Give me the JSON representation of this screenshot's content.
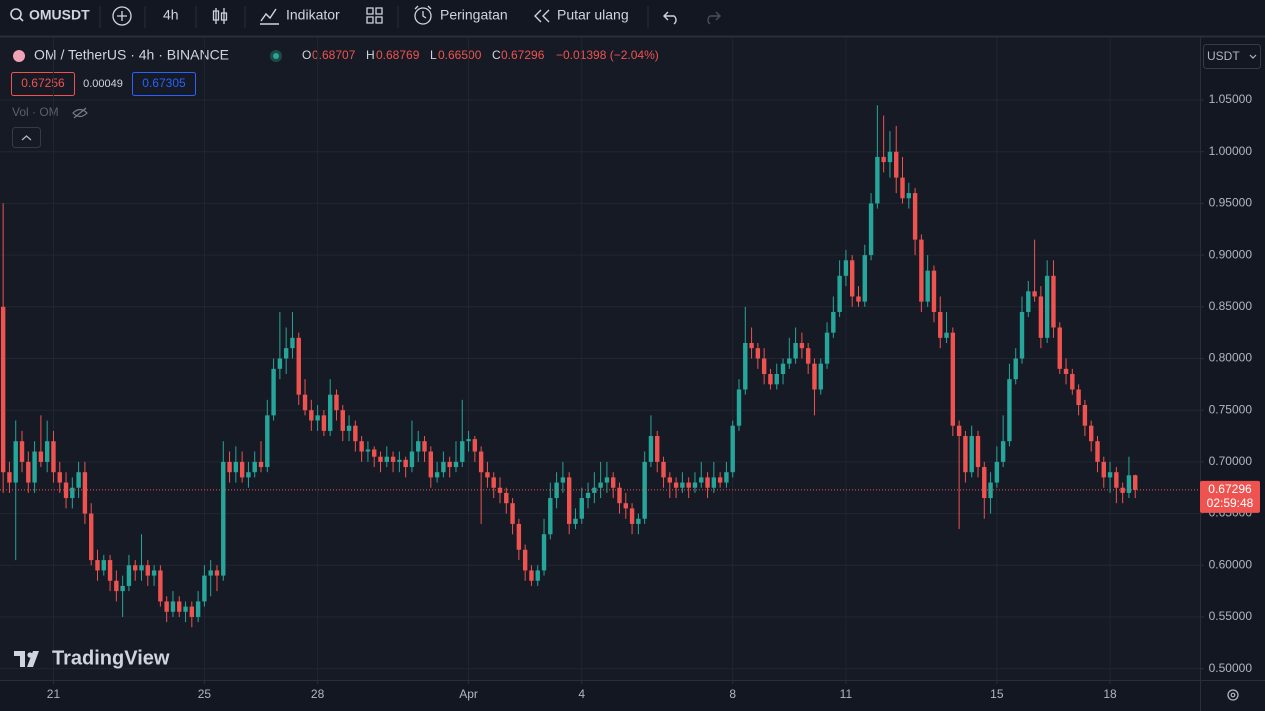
{
  "toolbar": {
    "symbol": "OMUSDT",
    "interval": "4h",
    "indicators": "Indikator",
    "alerts": "Peringatan",
    "replay": "Putar ulang"
  },
  "legend": {
    "title": "OM / TetherUS · 4h · BINANCE",
    "ohlc": [
      {
        "label": "O",
        "value": "0.68707"
      },
      {
        "label": "H",
        "value": "0.68769"
      },
      {
        "label": "L",
        "value": "0.66500"
      },
      {
        "label": "C",
        "value": "0.67296"
      }
    ],
    "change": "−0.01398 (−2.04%)",
    "bid": "0.67256",
    "spread": "0.00049",
    "ask": "0.67305",
    "volume": "Vol · OM"
  },
  "chart_data": {
    "type": "candlestick",
    "currency": "USDT",
    "up_color": "#26a69a",
    "down_color": "#ef5350",
    "grid": true,
    "last_price_label": "0.67296",
    "countdown": "02:59:48",
    "watermark": "TradingView",
    "ylim": [
      0.489,
      1.111
    ],
    "yticks": [
      {
        "value": 0.5,
        "label": "0.50000"
      },
      {
        "value": 0.55,
        "label": "0.55000"
      },
      {
        "value": 0.6,
        "label": "0.60000"
      },
      {
        "value": 0.65,
        "label": "0.65000"
      },
      {
        "value": 0.7,
        "label": "0.70000"
      },
      {
        "value": 0.75,
        "label": "0.75000"
      },
      {
        "value": 0.8,
        "label": "0.80000"
      },
      {
        "value": 0.85,
        "label": "0.85000"
      },
      {
        "value": 0.9,
        "label": "0.90000"
      },
      {
        "value": 0.95,
        "label": "0.95000"
      },
      {
        "value": 1,
        "label": "1.00000"
      },
      {
        "value": 1.05,
        "label": "1.05000"
      }
    ],
    "xlim": [
      -0.5,
      190.3
    ],
    "xticks": [
      {
        "value": 8,
        "label": "21"
      },
      {
        "value": 32,
        "label": "25"
      },
      {
        "value": 50,
        "label": "28"
      },
      {
        "value": 74,
        "label": "Apr"
      },
      {
        "value": 92,
        "label": "4"
      },
      {
        "value": 116,
        "label": "8"
      },
      {
        "value": 134,
        "label": "11"
      },
      {
        "value": 158,
        "label": "15"
      },
      {
        "value": 176,
        "label": "18"
      }
    ],
    "candles": [
      [
        0.85,
        0.95,
        0.67,
        0.69
      ],
      [
        0.69,
        0.7,
        0.67,
        0.68
      ],
      [
        0.68,
        0.74,
        0.605,
        0.72
      ],
      [
        0.72,
        0.73,
        0.69,
        0.7
      ],
      [
        0.7,
        0.71,
        0.67,
        0.68
      ],
      [
        0.68,
        0.72,
        0.67,
        0.71
      ],
      [
        0.71,
        0.745,
        0.695,
        0.7
      ],
      [
        0.7,
        0.74,
        0.69,
        0.72
      ],
      [
        0.72,
        0.73,
        0.68,
        0.69
      ],
      [
        0.69,
        0.7,
        0.67,
        0.68
      ],
      [
        0.68,
        0.69,
        0.655,
        0.665
      ],
      [
        0.665,
        0.685,
        0.655,
        0.675
      ],
      [
        0.675,
        0.7,
        0.665,
        0.69
      ],
      [
        0.69,
        0.7,
        0.64,
        0.65
      ],
      [
        0.65,
        0.66,
        0.6,
        0.605
      ],
      [
        0.605,
        0.615,
        0.585,
        0.595
      ],
      [
        0.595,
        0.61,
        0.59,
        0.605
      ],
      [
        0.605,
        0.61,
        0.575,
        0.585
      ],
      [
        0.585,
        0.595,
        0.565,
        0.575
      ],
      [
        0.575,
        0.59,
        0.55,
        0.58
      ],
      [
        0.58,
        0.61,
        0.575,
        0.6
      ],
      [
        0.6,
        0.605,
        0.585,
        0.595
      ],
      [
        0.595,
        0.63,
        0.585,
        0.6
      ],
      [
        0.6,
        0.605,
        0.58,
        0.59
      ],
      [
        0.59,
        0.6,
        0.58,
        0.595
      ],
      [
        0.595,
        0.6,
        0.56,
        0.565
      ],
      [
        0.565,
        0.57,
        0.545,
        0.555
      ],
      [
        0.555,
        0.575,
        0.55,
        0.565
      ],
      [
        0.565,
        0.57,
        0.55,
        0.555
      ],
      [
        0.555,
        0.565,
        0.545,
        0.56
      ],
      [
        0.56,
        0.565,
        0.54,
        0.55
      ],
      [
        0.55,
        0.575,
        0.545,
        0.565
      ],
      [
        0.565,
        0.6,
        0.56,
        0.59
      ],
      [
        0.59,
        0.605,
        0.57,
        0.595
      ],
      [
        0.595,
        0.6,
        0.575,
        0.59
      ],
      [
        0.59,
        0.72,
        0.585,
        0.7
      ],
      [
        0.7,
        0.71,
        0.68,
        0.69
      ],
      [
        0.69,
        0.715,
        0.68,
        0.7
      ],
      [
        0.7,
        0.71,
        0.68,
        0.685
      ],
      [
        0.685,
        0.7,
        0.675,
        0.69
      ],
      [
        0.69,
        0.71,
        0.685,
        0.7
      ],
      [
        0.7,
        0.72,
        0.69,
        0.695
      ],
      [
        0.695,
        0.76,
        0.69,
        0.745
      ],
      [
        0.745,
        0.8,
        0.74,
        0.79
      ],
      [
        0.79,
        0.845,
        0.78,
        0.8
      ],
      [
        0.8,
        0.83,
        0.785,
        0.81
      ],
      [
        0.81,
        0.845,
        0.8,
        0.82
      ],
      [
        0.82,
        0.825,
        0.755,
        0.765
      ],
      [
        0.765,
        0.78,
        0.745,
        0.75
      ],
      [
        0.75,
        0.76,
        0.73,
        0.74
      ],
      [
        0.74,
        0.755,
        0.73,
        0.745
      ],
      [
        0.745,
        0.75,
        0.725,
        0.73
      ],
      [
        0.73,
        0.78,
        0.725,
        0.765
      ],
      [
        0.765,
        0.77,
        0.74,
        0.75
      ],
      [
        0.75,
        0.755,
        0.72,
        0.73
      ],
      [
        0.73,
        0.745,
        0.72,
        0.735
      ],
      [
        0.735,
        0.74,
        0.71,
        0.72
      ],
      [
        0.72,
        0.725,
        0.7,
        0.71
      ],
      [
        0.71,
        0.72,
        0.7,
        0.712
      ],
      [
        0.712,
        0.715,
        0.695,
        0.705
      ],
      [
        0.705,
        0.71,
        0.69,
        0.7
      ],
      [
        0.7,
        0.715,
        0.695,
        0.705
      ],
      [
        0.705,
        0.71,
        0.69,
        0.7
      ],
      [
        0.7,
        0.71,
        0.69,
        0.702
      ],
      [
        0.702,
        0.705,
        0.685,
        0.695
      ],
      [
        0.695,
        0.74,
        0.69,
        0.71
      ],
      [
        0.71,
        0.73,
        0.7,
        0.72
      ],
      [
        0.72,
        0.725,
        0.7,
        0.71
      ],
      [
        0.71,
        0.715,
        0.675,
        0.685
      ],
      [
        0.685,
        0.7,
        0.68,
        0.69
      ],
      [
        0.69,
        0.71,
        0.685,
        0.7
      ],
      [
        0.7,
        0.705,
        0.685,
        0.695
      ],
      [
        0.695,
        0.72,
        0.69,
        0.7
      ],
      [
        0.7,
        0.76,
        0.695,
        0.72
      ],
      [
        0.72,
        0.73,
        0.71,
        0.722
      ],
      [
        0.722,
        0.725,
        0.7,
        0.71
      ],
      [
        0.71,
        0.715,
        0.64,
        0.69
      ],
      [
        0.69,
        0.7,
        0.675,
        0.685
      ],
      [
        0.685,
        0.69,
        0.665,
        0.675
      ],
      [
        0.675,
        0.685,
        0.66,
        0.67
      ],
      [
        0.67,
        0.675,
        0.65,
        0.66
      ],
      [
        0.66,
        0.665,
        0.63,
        0.64
      ],
      [
        0.64,
        0.645,
        0.605,
        0.615
      ],
      [
        0.615,
        0.62,
        0.585,
        0.595
      ],
      [
        0.595,
        0.6,
        0.58,
        0.585
      ],
      [
        0.585,
        0.6,
        0.58,
        0.595
      ],
      [
        0.595,
        0.645,
        0.59,
        0.63
      ],
      [
        0.63,
        0.68,
        0.625,
        0.665
      ],
      [
        0.665,
        0.69,
        0.655,
        0.68
      ],
      [
        0.68,
        0.7,
        0.67,
        0.685
      ],
      [
        0.685,
        0.69,
        0.63,
        0.64
      ],
      [
        0.64,
        0.655,
        0.635,
        0.645
      ],
      [
        0.645,
        0.675,
        0.64,
        0.665
      ],
      [
        0.665,
        0.68,
        0.655,
        0.67
      ],
      [
        0.67,
        0.69,
        0.66,
        0.675
      ],
      [
        0.675,
        0.7,
        0.665,
        0.68
      ],
      [
        0.68,
        0.7,
        0.67,
        0.685
      ],
      [
        0.685,
        0.69,
        0.665,
        0.675
      ],
      [
        0.675,
        0.68,
        0.65,
        0.66
      ],
      [
        0.66,
        0.67,
        0.645,
        0.655
      ],
      [
        0.655,
        0.66,
        0.63,
        0.64
      ],
      [
        0.64,
        0.65,
        0.63,
        0.645
      ],
      [
        0.645,
        0.71,
        0.64,
        0.7
      ],
      [
        0.7,
        0.745,
        0.695,
        0.725
      ],
      [
        0.725,
        0.73,
        0.69,
        0.7
      ],
      [
        0.7,
        0.705,
        0.675,
        0.685
      ],
      [
        0.685,
        0.69,
        0.665,
        0.68
      ],
      [
        0.68,
        0.685,
        0.665,
        0.675
      ],
      [
        0.675,
        0.69,
        0.67,
        0.68
      ],
      [
        0.68,
        0.685,
        0.665,
        0.675
      ],
      [
        0.675,
        0.69,
        0.67,
        0.68
      ],
      [
        0.68,
        0.7,
        0.675,
        0.685
      ],
      [
        0.685,
        0.69,
        0.665,
        0.675
      ],
      [
        0.675,
        0.7,
        0.67,
        0.685
      ],
      [
        0.685,
        0.69,
        0.675,
        0.68
      ],
      [
        0.68,
        0.7,
        0.675,
        0.69
      ],
      [
        0.69,
        0.74,
        0.685,
        0.735
      ],
      [
        0.735,
        0.78,
        0.73,
        0.77
      ],
      [
        0.77,
        0.85,
        0.765,
        0.815
      ],
      [
        0.815,
        0.83,
        0.8,
        0.81
      ],
      [
        0.81,
        0.815,
        0.79,
        0.8
      ],
      [
        0.8,
        0.81,
        0.775,
        0.785
      ],
      [
        0.785,
        0.79,
        0.77,
        0.775
      ],
      [
        0.775,
        0.795,
        0.77,
        0.785
      ],
      [
        0.785,
        0.8,
        0.775,
        0.795
      ],
      [
        0.795,
        0.82,
        0.79,
        0.8
      ],
      [
        0.8,
        0.83,
        0.795,
        0.815
      ],
      [
        0.815,
        0.825,
        0.8,
        0.81
      ],
      [
        0.81,
        0.815,
        0.785,
        0.795
      ],
      [
        0.795,
        0.8,
        0.745,
        0.77
      ],
      [
        0.77,
        0.8,
        0.765,
        0.795
      ],
      [
        0.795,
        0.835,
        0.79,
        0.825
      ],
      [
        0.825,
        0.86,
        0.82,
        0.845
      ],
      [
        0.845,
        0.895,
        0.84,
        0.88
      ],
      [
        0.88,
        0.905,
        0.87,
        0.895
      ],
      [
        0.895,
        0.9,
        0.85,
        0.86
      ],
      [
        0.86,
        0.87,
        0.85,
        0.855
      ],
      [
        0.855,
        0.91,
        0.85,
        0.9
      ],
      [
        0.9,
        0.96,
        0.895,
        0.95
      ],
      [
        0.95,
        1.045,
        0.945,
        0.995
      ],
      [
        0.995,
        1.035,
        0.98,
        0.99
      ],
      [
        0.99,
        1.02,
        0.975,
        1
      ],
      [
        1,
        1.025,
        0.96,
        0.975
      ],
      [
        0.975,
        0.995,
        0.95,
        0.955
      ],
      [
        0.955,
        0.97,
        0.945,
        0.96
      ],
      [
        0.96,
        0.965,
        0.9,
        0.915
      ],
      [
        0.915,
        0.92,
        0.845,
        0.855
      ],
      [
        0.855,
        0.9,
        0.85,
        0.885
      ],
      [
        0.885,
        0.89,
        0.835,
        0.845
      ],
      [
        0.845,
        0.86,
        0.81,
        0.82
      ],
      [
        0.82,
        0.845,
        0.815,
        0.825
      ],
      [
        0.825,
        0.83,
        0.725,
        0.735
      ],
      [
        0.735,
        0.74,
        0.635,
        0.725
      ],
      [
        0.725,
        0.73,
        0.68,
        0.69
      ],
      [
        0.69,
        0.735,
        0.685,
        0.725
      ],
      [
        0.725,
        0.73,
        0.685,
        0.695
      ],
      [
        0.695,
        0.7,
        0.645,
        0.665
      ],
      [
        0.665,
        0.69,
        0.65,
        0.68
      ],
      [
        0.68,
        0.715,
        0.675,
        0.7
      ],
      [
        0.7,
        0.745,
        0.695,
        0.72
      ],
      [
        0.72,
        0.795,
        0.715,
        0.78
      ],
      [
        0.78,
        0.81,
        0.775,
        0.8
      ],
      [
        0.8,
        0.86,
        0.795,
        0.845
      ],
      [
        0.845,
        0.875,
        0.84,
        0.865
      ],
      [
        0.865,
        0.915,
        0.855,
        0.86
      ],
      [
        0.86,
        0.87,
        0.81,
        0.82
      ],
      [
        0.82,
        0.895,
        0.815,
        0.88
      ],
      [
        0.88,
        0.895,
        0.82,
        0.83
      ],
      [
        0.83,
        0.835,
        0.785,
        0.79
      ],
      [
        0.79,
        0.8,
        0.775,
        0.785
      ],
      [
        0.785,
        0.79,
        0.765,
        0.77
      ],
      [
        0.77,
        0.775,
        0.745,
        0.755
      ],
      [
        0.755,
        0.76,
        0.725,
        0.735
      ],
      [
        0.735,
        0.74,
        0.71,
        0.72
      ],
      [
        0.72,
        0.725,
        0.69,
        0.7
      ],
      [
        0.7,
        0.705,
        0.675,
        0.685
      ],
      [
        0.685,
        0.7,
        0.67,
        0.69
      ],
      [
        0.69,
        0.695,
        0.66,
        0.675
      ],
      [
        0.675,
        0.68,
        0.66,
        0.67
      ],
      [
        0.67,
        0.705,
        0.665,
        0.687
      ],
      [
        0.68707,
        0.68769,
        0.665,
        0.67296
      ]
    ]
  }
}
